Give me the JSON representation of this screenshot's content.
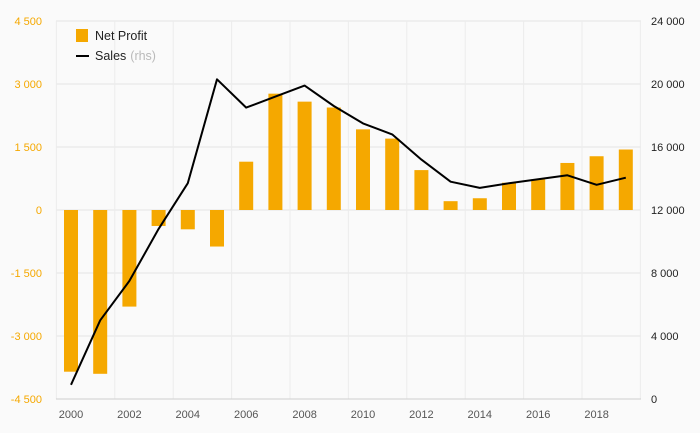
{
  "chart_data": {
    "type": "bar",
    "x": [
      2000,
      2001,
      2002,
      2003,
      2004,
      2005,
      2006,
      2007,
      2008,
      2009,
      2010,
      2011,
      2012,
      2013,
      2014,
      2015,
      2016,
      2017,
      2018,
      2019
    ],
    "x_tick_labels": [
      "2000",
      "2002",
      "2004",
      "2006",
      "2008",
      "2010",
      "2012",
      "2014",
      "2016",
      "2018"
    ],
    "series": [
      {
        "name": "Net Profit",
        "type": "bar",
        "axis": "left",
        "color": "#f5a800",
        "values": [
          -3850,
          -3900,
          -2300,
          -380,
          -460,
          -870,
          1150,
          2770,
          2580,
          2440,
          1920,
          1700,
          950,
          210,
          280,
          650,
          730,
          1120,
          1280,
          1440
        ]
      },
      {
        "name": "Sales",
        "name_suffix": "(rhs)",
        "type": "line",
        "axis": "right",
        "color": "#000000",
        "values": [
          900,
          5000,
          7500,
          10800,
          13700,
          20300,
          18500,
          19200,
          19900,
          18600,
          17500,
          16800,
          15200,
          13800,
          13400,
          13700,
          13950,
          14200,
          13600,
          14050
        ]
      }
    ],
    "y_left": {
      "ylim": [
        -4500,
        4500
      ],
      "ticks": [
        -4500,
        -3000,
        -1500,
        0,
        1500,
        3000,
        4500
      ],
      "tick_labels": [
        "-4 500",
        "-3 000",
        "-1 500",
        "0",
        "1 500",
        "3 000",
        "4 500"
      ]
    },
    "y_right": {
      "ylim": [
        0,
        24000
      ],
      "ticks": [
        0,
        4000,
        8000,
        12000,
        16000,
        20000,
        24000
      ],
      "tick_labels": [
        "0",
        "4 000",
        "8 000",
        "12 000",
        "16 000",
        "20 000",
        "24 000"
      ]
    },
    "grid": true,
    "legend": "top-left",
    "legend_items": [
      {
        "label": "Net Profit",
        "sub": ""
      },
      {
        "label": "Sales",
        "sub": "(rhs)"
      }
    ]
  }
}
